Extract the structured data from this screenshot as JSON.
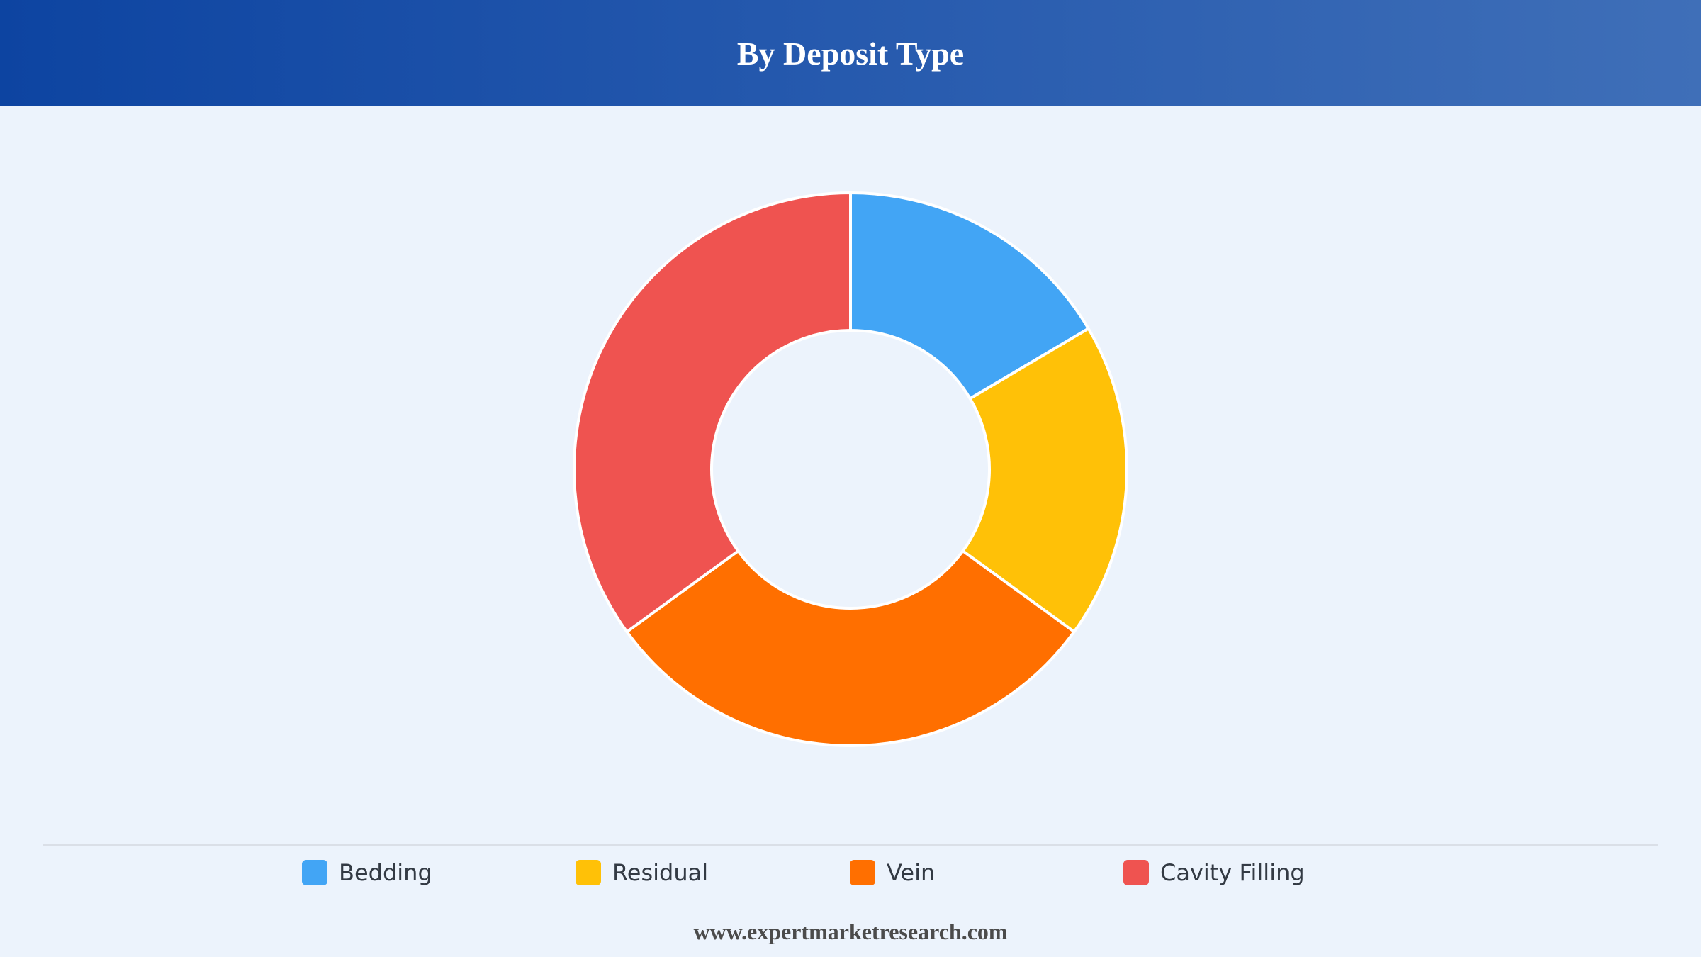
{
  "header": {
    "title": "By Deposit Type"
  },
  "chart_data": {
    "type": "pie",
    "variant": "donut",
    "title": "By Deposit Type",
    "categories": [
      "Bedding",
      "Residual",
      "Vein",
      "Cavity Filling"
    ],
    "values": [
      16.5,
      18.5,
      30,
      35
    ],
    "colors": [
      "#42a5f5",
      "#ffc107",
      "#ff6f00",
      "#ef5350"
    ],
    "legend_position": "bottom",
    "slice_border_color": "#ffffff"
  },
  "legend": {
    "items": [
      {
        "label": "Bedding",
        "color": "#42a5f5"
      },
      {
        "label": "Residual",
        "color": "#ffc107"
      },
      {
        "label": "Vein",
        "color": "#ff6f00"
      },
      {
        "label": "Cavity Filling",
        "color": "#ef5350"
      }
    ]
  },
  "footer": {
    "source": "www.expertmarketresearch.com"
  }
}
